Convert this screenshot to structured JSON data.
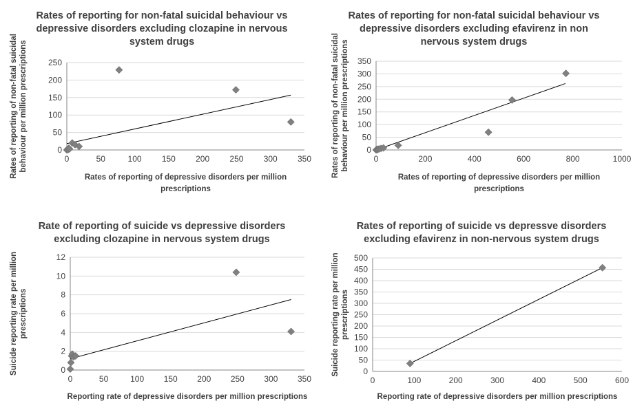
{
  "chart_data": [
    {
      "type": "scatter",
      "title": "Rates of reporting for non-fatal suicidal behaviour vs depressive disorders excluding clozapine in nervous system drugs",
      "title_lines": [
        "Rates of reporting for non-fatal suicidal behaviour vs",
        "depressive disorders excluding clozapine in nervous",
        "system drugs"
      ],
      "xlabel": "Rates of  reporting of depressive disorders per million prescriptions",
      "xlabel_lines": [
        "Rates of  reporting of depressive disorders per million",
        "prescriptions"
      ],
      "ylabel": "Rates of reporting of non-fatal suicidal behaviour per million prescriptions",
      "ylabel_lines": [
        "Rates of reporting of non-fatal suicidal",
        "behaviour per million prescriptions"
      ],
      "xlim": [
        0,
        350
      ],
      "ylim": [
        0,
        250
      ],
      "xticks": [
        "0",
        "50",
        "100",
        "150",
        "200",
        "250",
        "300",
        "350"
      ],
      "yticks": [
        "0",
        "50",
        "100",
        "150",
        "200",
        "250"
      ],
      "grid": true,
      "marker_color": "#808080",
      "trendline": [
        [
          0,
          18
        ],
        [
          330,
          157
        ]
      ],
      "series": [
        {
          "x": [
            0,
            1,
            2,
            3,
            4,
            8,
            12,
            18,
            77,
            249,
            330
          ],
          "y": [
            0,
            2,
            1,
            5,
            3,
            20,
            15,
            10,
            229,
            172,
            80
          ]
        }
      ]
    },
    {
      "type": "scatter",
      "title": "Rates of reporting for non-fatal suicidal behaviour vs depressive disorders excluding efavirenz in non nervous system drugs",
      "title_lines": [
        "Rates of reporting for non-fatal suicidal behaviour vs",
        "depressive disorders excluding efavirenz in non",
        "nervous system drugs"
      ],
      "xlabel": "Rates of reporting of depressive disorders per million prescriptions",
      "xlabel_lines": [
        "Rates of reporting of depressive disorders per million",
        "prescriptions"
      ],
      "ylabel": "Rates of reporting of non-fatal suicidal behaviour per million prescriptions",
      "ylabel_lines": [
        "Rates of reporting of non-fatal suicidal",
        "behaviour per million prescriptions"
      ],
      "xlim": [
        0,
        1000
      ],
      "ylim": [
        0,
        350
      ],
      "xticks": [
        "0",
        "200",
        "400",
        "600",
        "800",
        "1000"
      ],
      "yticks": [
        "0",
        "50",
        "100",
        "150",
        "200",
        "250",
        "300",
        "350"
      ],
      "grid": true,
      "marker_color": "#808080",
      "trendline": [
        [
          0,
          0
        ],
        [
          770,
          262
        ]
      ],
      "series": [
        {
          "x": [
            0,
            3,
            5,
            8,
            12,
            20,
            30,
            90,
            457,
            553,
            772
          ],
          "y": [
            0,
            2,
            1,
            3,
            4,
            6,
            8,
            18,
            70,
            197,
            302
          ]
        }
      ]
    },
    {
      "type": "scatter",
      "title": "Rate of reporting of suicide vs depressive disorders excluding clozapine in nervous system drugs",
      "title_lines": [
        "Rate of reporting of suicide vs depressive disorders",
        "excluding clozapine in nervous system drugs"
      ],
      "xlabel": "Reporting rate of depressive disorders per million prescriptions",
      "xlabel_lines": [
        "Reporting rate of depressive disorders per million prescriptions"
      ],
      "ylabel": "Suicide reporting rate per million prescriptions",
      "ylabel_lines": [
        "Suicide reporting rate per million",
        "prescriptions"
      ],
      "xlim": [
        0,
        350
      ],
      "ylim": [
        0,
        12
      ],
      "xticks": [
        "0",
        "50",
        "100",
        "150",
        "200",
        "250",
        "300",
        "350"
      ],
      "yticks": [
        "0",
        "2",
        "4",
        "6",
        "8",
        "10",
        "12"
      ],
      "grid": true,
      "marker_color": "#808080",
      "trendline": [
        [
          0,
          1.2
        ],
        [
          330,
          7.5
        ]
      ],
      "series": [
        {
          "x": [
            0,
            1,
            2,
            3,
            5,
            8,
            248,
            330
          ],
          "y": [
            0.1,
            0.8,
            1.5,
            1.7,
            1.4,
            1.5,
            10.4,
            4.1
          ]
        }
      ]
    },
    {
      "type": "scatter",
      "title": "Rates of reporting of suicide vs depressve disorders excluding efavirenz in non-nervous system drugs",
      "title_lines": [
        "Rates of reporting of suicide vs depressve disorders",
        "excluding efavirenz in non-nervous system drugs"
      ],
      "xlabel": "Reporting rate of depressive disorders per million prescriptions",
      "xlabel_lines": [
        "Reporting rate of depressive disorders per million prescriptions"
      ],
      "ylabel": "Suicide reporting rate per million prescriptions",
      "ylabel_lines": [
        "Suicide reporting rate per million",
        "prescriptions"
      ],
      "xlim": [
        0,
        600
      ],
      "ylim": [
        0,
        500
      ],
      "xticks": [
        "0",
        "100",
        "200",
        "300",
        "400",
        "500",
        "600"
      ],
      "yticks": [
        "0",
        "50",
        "100",
        "150",
        "200",
        "250",
        "300",
        "350",
        "400",
        "450",
        "500"
      ],
      "grid": true,
      "marker_color": "#808080",
      "trendline": [
        [
          90,
          35
        ],
        [
          553,
          457
        ]
      ],
      "series": [
        {
          "x": [
            90,
            553
          ],
          "y": [
            35,
            457
          ]
        }
      ]
    }
  ]
}
